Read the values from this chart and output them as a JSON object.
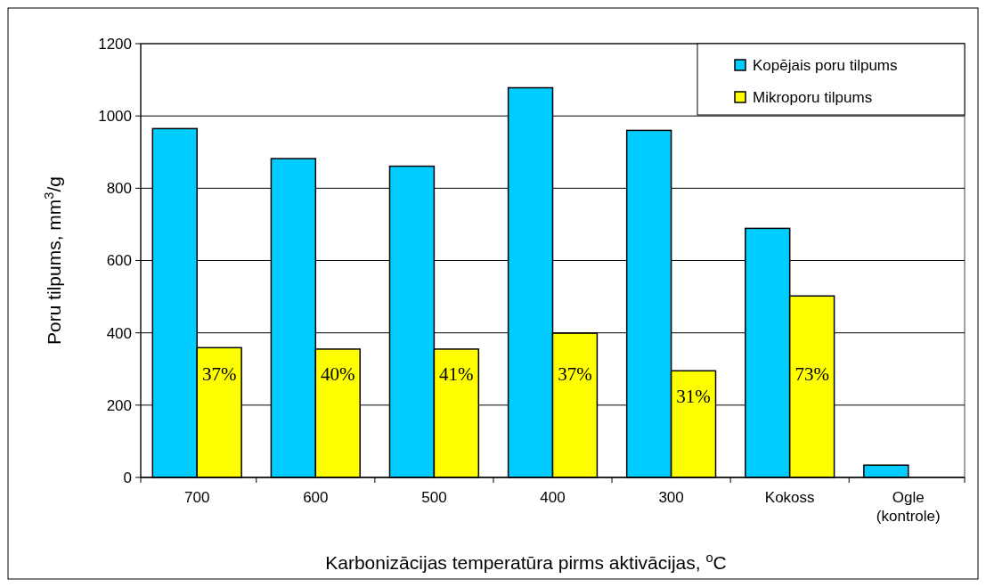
{
  "chart_data": {
    "type": "bar",
    "xlabel": "Karbonizācijas temperatūra pirms aktivācijas, $^{o}$C",
    "ylabel": "Poru tilpums, mm$^{3}$/g",
    "categories": [
      "700",
      "600",
      "500",
      "400",
      "300",
      "Kokoss",
      "Ogle\n(kontrole)"
    ],
    "series": [
      {
        "name": "Kopējais poru tilpums",
        "color": "#00ccff",
        "values": [
          965,
          882,
          861,
          1078,
          960,
          689,
          34
        ]
      },
      {
        "name": "Mikroporu tilpums",
        "color": "#ffff00",
        "values": [
          359,
          355,
          355,
          399,
          295,
          502,
          null
        ]
      }
    ],
    "ylim": [
      0,
      1200
    ],
    "yticks": [
      0,
      200,
      400,
      600,
      800,
      1000,
      1200
    ],
    "grid": "y",
    "legend": "top right",
    "annotations": [
      {
        "text": "37%",
        "x": "700",
        "y": 286
      },
      {
        "text": "40%",
        "x": "600",
        "y": 286
      },
      {
        "text": "41%",
        "x": "500",
        "y": 286
      },
      {
        "text": "37%",
        "x": "400",
        "y": 286
      },
      {
        "text": "31%",
        "x": "300",
        "y": 224
      },
      {
        "text": "73%",
        "x": "Kokoss",
        "y": 286
      }
    ]
  }
}
